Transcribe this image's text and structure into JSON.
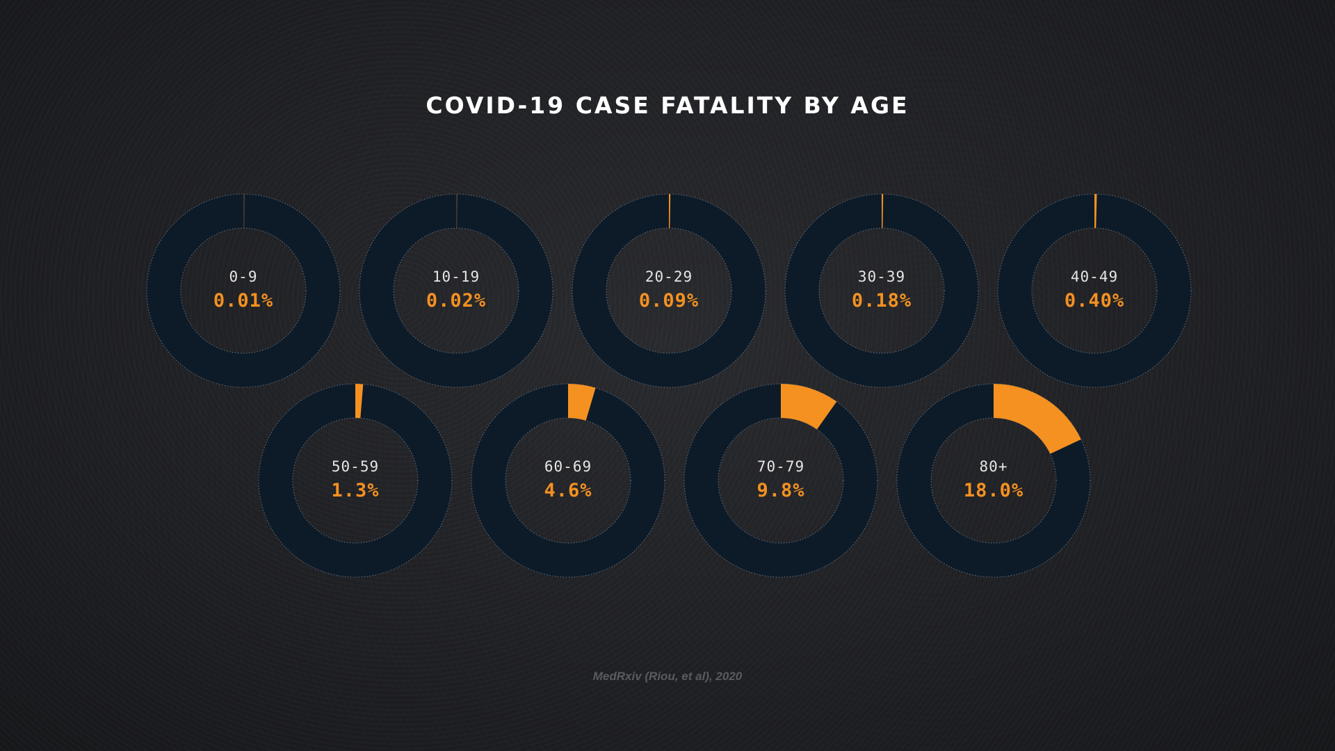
{
  "title": "COVID-19 CASE FATALITY BY AGE",
  "source": "MedRxiv (Riou, et al), 2020",
  "colors": {
    "ring": "#0d1b29",
    "fill": "#f59120",
    "outline": "#7d8894",
    "label": "#e6e6e6"
  },
  "chart_data": {
    "type": "pie",
    "title": "COVID-19 CASE FATALITY BY AGE",
    "unit": "%",
    "categories": [
      "0-9",
      "10-19",
      "20-29",
      "30-39",
      "40-49",
      "50-59",
      "60-69",
      "70-79",
      "80+"
    ],
    "values": [
      0.01,
      0.02,
      0.09,
      0.18,
      0.4,
      1.3,
      4.6,
      9.8,
      18.0
    ],
    "value_labels": [
      "0.01%",
      "0.02%",
      "0.09%",
      "0.18%",
      "0.40%",
      "1.3%",
      "4.6%",
      "9.8%",
      "18.0%"
    ]
  }
}
